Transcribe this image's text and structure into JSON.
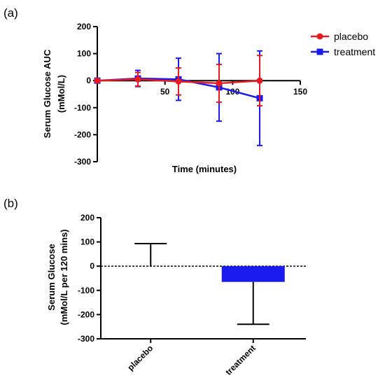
{
  "panels": {
    "a_label": "(a)",
    "b_label": "(b)"
  },
  "chart_data": [
    {
      "type": "line",
      "title": "",
      "xlabel": "Time (minutes)",
      "ylabel": "Serum Glucose AUC",
      "ylabel_units": "(mMol/L)",
      "xlim": [
        0,
        150
      ],
      "ylim": [
        -300,
        200
      ],
      "xticks": [
        50,
        100,
        150
      ],
      "yticks": [
        200,
        100,
        0,
        -100,
        -200,
        -300
      ],
      "grid": false,
      "legend": "top-right",
      "series": [
        {
          "name": "placebo",
          "color": "#e8191f",
          "marker": "circle",
          "x": [
            0,
            30,
            60,
            90,
            120
          ],
          "y": [
            0,
            5,
            -3,
            -10,
            0
          ],
          "err": [
            0,
            25,
            50,
            70,
            93
          ]
        },
        {
          "name": "treatment",
          "color": "#1a1aee",
          "marker": "square",
          "x": [
            0,
            30,
            60,
            90,
            120
          ],
          "y": [
            0,
            8,
            5,
            -25,
            -65
          ],
          "err": [
            0,
            30,
            78,
            125,
            175
          ]
        }
      ]
    },
    {
      "type": "bar",
      "title": "",
      "xlabel": "",
      "ylabel": "Serum Glucose",
      "ylabel_units": "(mMol/L  per 120 mins)",
      "categories": [
        "placebo",
        "treatment"
      ],
      "values": [
        0,
        -65
      ],
      "err": [
        93,
        175
      ],
      "colors": [
        "#ffffff",
        "#1a1aee"
      ],
      "ylim": [
        -300,
        200
      ],
      "yticks": [
        200,
        100,
        0,
        -100,
        -200,
        -300
      ],
      "grid": false,
      "zero_line": "dashed"
    }
  ]
}
